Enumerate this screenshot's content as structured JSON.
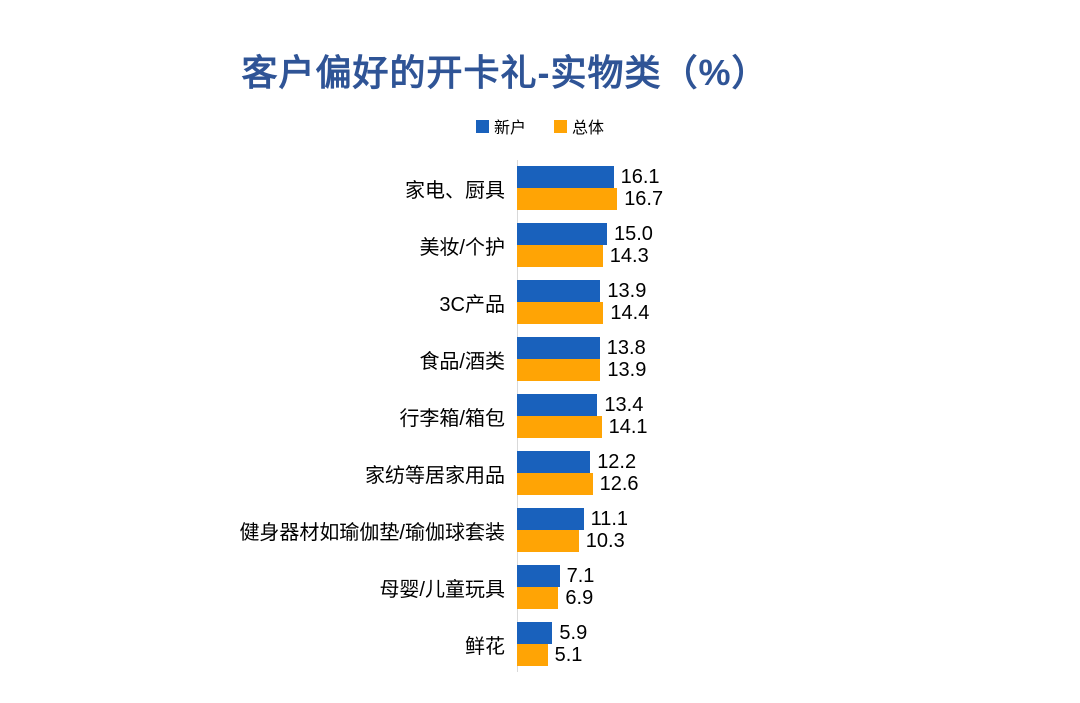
{
  "page": {
    "background": "#FFFFFF"
  },
  "title": {
    "text": "客户偏好的开卡礼-实物类（%）",
    "color": "#2F5496"
  },
  "legend": {
    "position": "top",
    "items": [
      {
        "label": "新户",
        "color": "#1961BC"
      },
      {
        "label": "总体",
        "color": "#FFA405"
      }
    ]
  },
  "colors": {
    "series_new_customer": "#1961BC",
    "series_overall": "#FFA405",
    "title_text": "#2F5496",
    "axis_line": "#D9D9D9",
    "label_text": "#000000"
  },
  "chart_data": {
    "type": "bar",
    "orientation": "horizontal",
    "title": "客户偏好的开卡礼-实物类（%）",
    "unit": "%",
    "grid": false,
    "legend_position": "top",
    "value_labels_shown": true,
    "categories": [
      "家电、厨具",
      "美妆/个护",
      "3C产品",
      "食品/酒类",
      "行李箱/箱包",
      "家纺等居家用品",
      "健身器材如瑜伽垫/瑜伽球套装",
      "母婴/儿童玩具",
      "鲜花"
    ],
    "series": [
      {
        "name": "新户",
        "color": "#1961BC",
        "values": [
          16.1,
          15.0,
          13.9,
          13.8,
          13.4,
          12.2,
          11.1,
          7.1,
          5.9
        ],
        "labels": [
          "16.1",
          "15.0",
          "13.9",
          "13.8",
          "13.4",
          "12.2",
          "11.1",
          "7.1",
          "5.9"
        ]
      },
      {
        "name": "总体",
        "color": "#FFA405",
        "values": [
          16.7,
          14.3,
          14.4,
          13.9,
          14.1,
          12.6,
          10.3,
          6.9,
          5.1
        ],
        "labels": [
          "16.7",
          "14.3",
          "14.4",
          "13.9",
          "14.1",
          "12.6",
          "10.3",
          "6.9",
          "5.1"
        ]
      }
    ]
  }
}
